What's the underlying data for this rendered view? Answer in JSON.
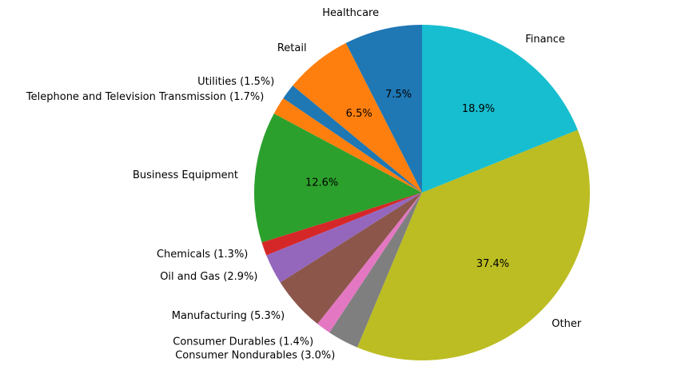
{
  "chart_data": {
    "type": "pie",
    "title": "",
    "slices": [
      {
        "label": "Healthcare",
        "value": 7.5,
        "pct_label": "7.5%",
        "color": "#1f77b4",
        "show_pct": true
      },
      {
        "label": "Retail",
        "value": 6.5,
        "pct_label": "6.5%",
        "color": "#ff7f0e",
        "show_pct": true
      },
      {
        "label": "Utilities  (1.5%)",
        "value": 1.5,
        "pct_label": "",
        "color": "#1f77b4",
        "show_pct": false
      },
      {
        "label": "Telephone and Television Transmission  (1.7%)",
        "value": 1.7,
        "pct_label": "",
        "color": "#ff7f0e",
        "show_pct": false
      },
      {
        "label": "Business Equipment",
        "value": 12.6,
        "pct_label": "12.6%",
        "color": "#2ca02c",
        "show_pct": true
      },
      {
        "label": "Chemicals  (1.3%)",
        "value": 1.3,
        "pct_label": "",
        "color": "#d62728",
        "show_pct": false
      },
      {
        "label": "Oil and Gas  (2.9%)",
        "value": 2.9,
        "pct_label": "",
        "color": "#9467bd",
        "show_pct": false
      },
      {
        "label": "Manufacturing  (5.3%)",
        "value": 5.3,
        "pct_label": "",
        "color": "#8c564b",
        "show_pct": false
      },
      {
        "label": "Consumer Durables  (1.4%)",
        "value": 1.4,
        "pct_label": "",
        "color": "#e377c2",
        "show_pct": false
      },
      {
        "label": "Consumer Nondurables  (3.0%)",
        "value": 3.0,
        "pct_label": "",
        "color": "#7f7f7f",
        "show_pct": false
      },
      {
        "label": "Other",
        "value": 37.4,
        "pct_label": "37.4%",
        "color": "#bcbd22",
        "show_pct": true
      },
      {
        "label": "Finance",
        "value": 18.9,
        "pct_label": "18.9%",
        "color": "#17becf",
        "show_pct": true
      }
    ]
  }
}
